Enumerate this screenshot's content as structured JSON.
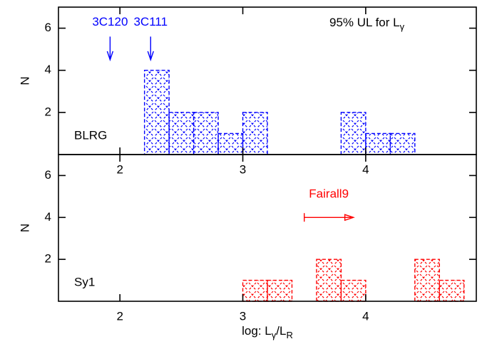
{
  "chart_data": [
    {
      "type": "histogram",
      "label": "BLRG",
      "ylabel": "N",
      "color": "#0000ff",
      "bins": [
        2.2,
        2.4,
        2.6,
        2.8,
        3.0,
        3.2,
        3.4,
        3.6,
        3.8,
        4.0,
        4.2,
        4.4
      ],
      "counts": [
        4,
        2,
        2,
        1,
        2,
        0,
        0,
        0,
        2,
        1,
        1
      ],
      "xlim": [
        1.5,
        4.9
      ],
      "xticks": [
        2,
        3,
        4
      ],
      "ylim": [
        0,
        7
      ],
      "yticks": [
        2,
        4,
        6
      ],
      "note": {
        "text": "95% UL for L",
        "sub": "γ"
      },
      "arrows": [
        {
          "text": "3C120",
          "x": 1.92,
          "y_from": 5.6,
          "y_to": 4.5
        },
        {
          "text": "3C111",
          "x": 2.25,
          "y_from": 5.6,
          "y_to": 4.5
        }
      ]
    },
    {
      "type": "histogram",
      "label": "Sy1",
      "ylabel": "N",
      "color": "#ff0000",
      "bins": [
        3.0,
        3.2,
        3.4,
        3.6,
        3.8,
        4.0,
        4.2,
        4.4,
        4.6,
        4.8
      ],
      "counts": [
        1,
        1,
        0,
        2,
        1,
        0,
        0,
        2,
        1
      ],
      "xlim": [
        1.5,
        4.9
      ],
      "xticks": [
        2,
        3,
        4
      ],
      "ylim": [
        0,
        7
      ],
      "yticks": [
        2,
        4,
        6
      ],
      "xlabel": [
        "log: L",
        "γ",
        "/L",
        "R"
      ],
      "harrows": [
        {
          "text": "Fairall9",
          "x_from": 3.5,
          "x_to": 3.9,
          "y": 4,
          "text_x": 3.7,
          "text_y": 5.1
        }
      ]
    }
  ]
}
